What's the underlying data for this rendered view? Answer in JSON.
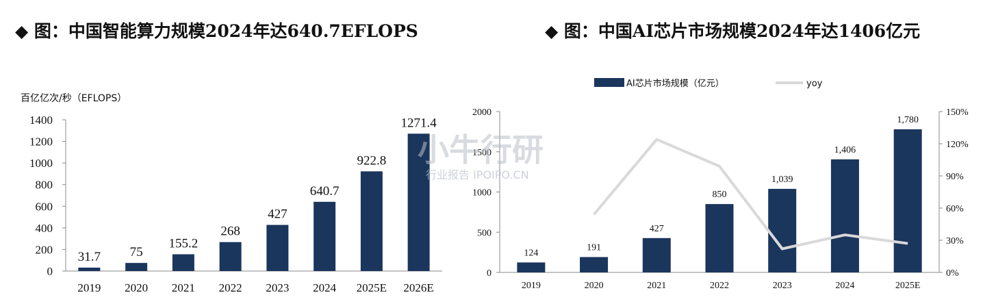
{
  "chart_data": [
    {
      "type": "bar",
      "title": "◆ 图：中国智能算力规模2024年达640.7EFLOPS",
      "ylabel": "百亿亿次/秒（EFLOPS）",
      "categories": [
        "2019",
        "2020",
        "2021",
        "2022",
        "2023",
        "2024",
        "2025E",
        "2026E"
      ],
      "values": [
        31.7,
        75,
        155.2,
        268,
        427,
        640.7,
        922.8,
        1271.4
      ],
      "value_labels": [
        "31.7",
        "75",
        "155.2",
        "268",
        "427",
        "640.7",
        "922.8",
        "1271.4"
      ],
      "yticks": [
        "0",
        "200",
        "400",
        "600",
        "800",
        "1000",
        "1200",
        "1400"
      ],
      "ylim": [
        0,
        1400
      ],
      "grid": false,
      "bar_color": "#1b365d"
    },
    {
      "type": "bar",
      "title": "◆ 图：中国AI芯片市场规模2024年达1406亿元",
      "categories": [
        "2019",
        "2020",
        "2021",
        "2022",
        "2023",
        "2024",
        "2025E"
      ],
      "series": [
        {
          "name": "AI芯片市场规模（亿元）",
          "type": "bar",
          "values": [
            124,
            191,
            427,
            850,
            1039,
            1406,
            1780
          ],
          "value_labels": [
            "124",
            "191",
            "427",
            "850",
            "1,039",
            "1,406",
            "1,780"
          ],
          "color": "#1b365d"
        },
        {
          "name": "yoy",
          "type": "line",
          "axis": "right",
          "values": [
            null,
            54,
            124,
            99,
            22,
            35,
            27
          ],
          "color": "#d9d9d9"
        }
      ],
      "yticks_left": [
        "0",
        "500",
        "1000",
        "1500",
        "2000"
      ],
      "ylim_left": [
        0,
        2000
      ],
      "yticks_right": [
        "0%",
        "30%",
        "60%",
        "90%",
        "120%",
        "150%"
      ],
      "ylim_right": [
        0,
        150
      ],
      "legend": "top",
      "grid": false
    }
  ],
  "watermark": {
    "main": "小牛行研",
    "sub": "行业报告 IPOIPO.CN"
  }
}
